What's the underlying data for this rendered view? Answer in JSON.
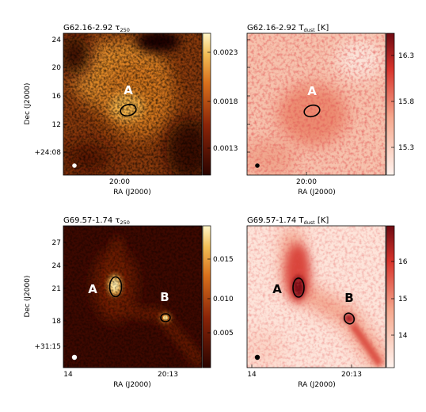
{
  "panels": [
    {
      "title": "G62.16-2.92 τ",
      "title_sub": "250",
      "colorbar_ticks": [
        "0.0023",
        "0.0018",
        "0.0013"
      ],
      "dec_ticks": [
        "24",
        "20",
        "16",
        "12",
        "+24:08"
      ],
      "ra_ticks": [
        "20:00"
      ],
      "xlabel": "RA (J2000)",
      "ylabel": "Dec (J2000)",
      "sources": [
        "A"
      ],
      "colormap": "afmhot"
    },
    {
      "title": "G62.16-2.92 T",
      "title_sub": "dust",
      "title_unit": " [K]",
      "colorbar_ticks": [
        "16.3",
        "15.8",
        "15.3"
      ],
      "ra_ticks": [
        "20:00"
      ],
      "xlabel": "RA (J2000)",
      "sources": [
        "A"
      ],
      "colormap": "Reds"
    },
    {
      "title": "G69.57-1.74 τ",
      "title_sub": "250",
      "colorbar_ticks": [
        "0.015",
        "0.010",
        "0.005"
      ],
      "dec_ticks": [
        "27",
        "24",
        "21",
        "18",
        "+31:15"
      ],
      "ra_ticks": [
        "14",
        "20:13"
      ],
      "xlabel": "RA (J2000)",
      "ylabel": "Dec (J2000)",
      "sources": [
        "A",
        "B"
      ],
      "colormap": "afmhot"
    },
    {
      "title": "G69.57-1.74 T",
      "title_sub": "dust",
      "title_unit": " [K]",
      "colorbar_ticks": [
        "16",
        "15",
        "14"
      ],
      "ra_ticks": [
        "14",
        "20:13"
      ],
      "xlabel": "RA (J2000)",
      "sources": [
        "A",
        "B"
      ],
      "colormap": "Reds"
    }
  ]
}
